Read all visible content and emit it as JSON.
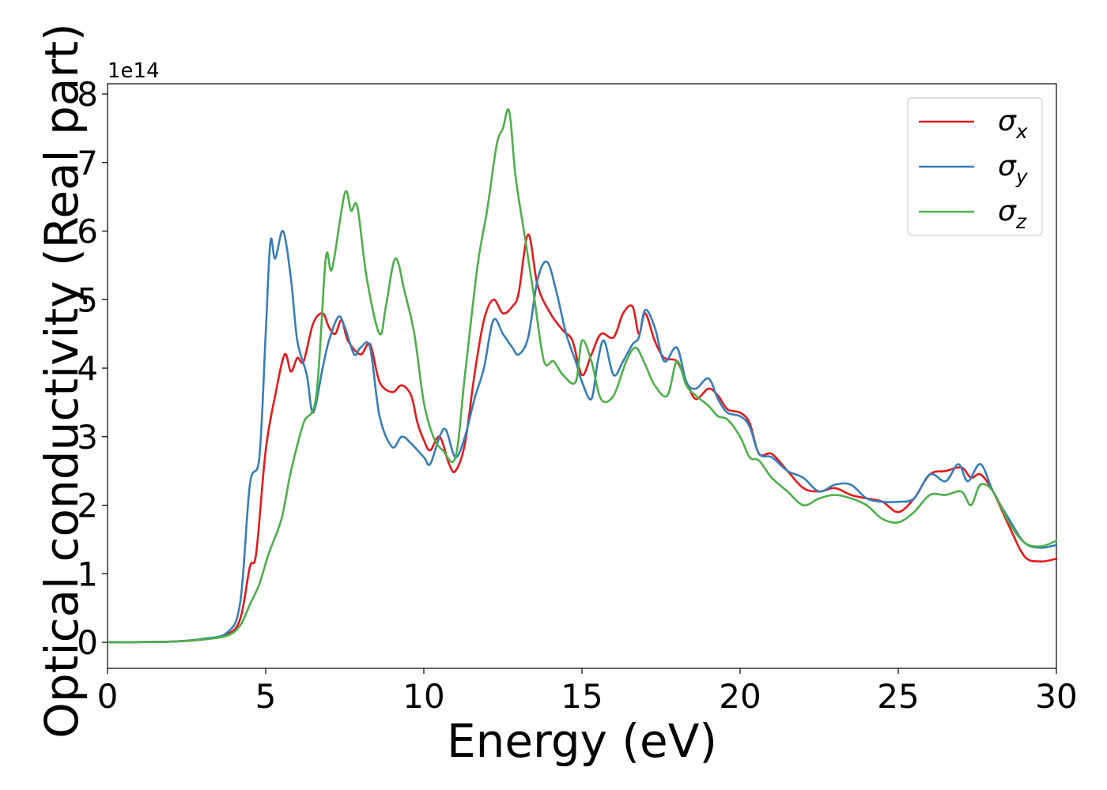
{
  "chart_data": {
    "type": "line",
    "xlabel": "Energy (eV)",
    "ylabel": "Optical conductivity (Real part)",
    "y_offset_label": "1e14",
    "xlim": [
      0,
      30
    ],
    "ylim": [
      -0.38,
      8.15
    ],
    "xticks": [
      0,
      5,
      10,
      15,
      20,
      25,
      30
    ],
    "yticks": [
      0,
      1,
      2,
      3,
      4,
      5,
      6,
      7,
      8
    ],
    "grid": false,
    "legend_position": "top-right",
    "series": [
      {
        "name": "σ",
        "subscript": "x",
        "color": "#e41a1c",
        "points": [
          [
            0,
            0
          ],
          [
            2,
            0.01
          ],
          [
            3,
            0.04
          ],
          [
            3.8,
            0.12
          ],
          [
            4.2,
            0.35
          ],
          [
            4.5,
            1.1
          ],
          [
            4.7,
            1.3
          ],
          [
            5.0,
            2.8
          ],
          [
            5.3,
            3.6
          ],
          [
            5.6,
            4.2
          ],
          [
            5.8,
            3.95
          ],
          [
            6.0,
            4.15
          ],
          [
            6.2,
            4.1
          ],
          [
            6.5,
            4.65
          ],
          [
            6.8,
            4.8
          ],
          [
            7.0,
            4.6
          ],
          [
            7.2,
            4.5
          ],
          [
            7.4,
            4.7
          ],
          [
            7.6,
            4.4
          ],
          [
            8.0,
            4.2
          ],
          [
            8.3,
            4.35
          ],
          [
            8.6,
            3.8
          ],
          [
            9.0,
            3.65
          ],
          [
            9.3,
            3.75
          ],
          [
            9.6,
            3.6
          ],
          [
            9.8,
            3.2
          ],
          [
            10.0,
            2.95
          ],
          [
            10.2,
            2.8
          ],
          [
            10.5,
            3.0
          ],
          [
            10.8,
            2.6
          ],
          [
            11.0,
            2.5
          ],
          [
            11.3,
            2.9
          ],
          [
            11.6,
            3.9
          ],
          [
            11.9,
            4.7
          ],
          [
            12.2,
            5.0
          ],
          [
            12.5,
            4.8
          ],
          [
            12.8,
            4.9
          ],
          [
            13.0,
            5.1
          ],
          [
            13.3,
            5.95
          ],
          [
            13.6,
            5.2
          ],
          [
            14.0,
            4.8
          ],
          [
            14.4,
            4.55
          ],
          [
            14.7,
            4.4
          ],
          [
            15.0,
            3.9
          ],
          [
            15.3,
            4.2
          ],
          [
            15.6,
            4.5
          ],
          [
            16.0,
            4.45
          ],
          [
            16.3,
            4.8
          ],
          [
            16.6,
            4.9
          ],
          [
            16.8,
            4.5
          ],
          [
            17.0,
            4.8
          ],
          [
            17.3,
            4.4
          ],
          [
            17.6,
            4.15
          ],
          [
            18.0,
            4.1
          ],
          [
            18.3,
            3.8
          ],
          [
            18.6,
            3.55
          ],
          [
            19.0,
            3.7
          ],
          [
            19.3,
            3.6
          ],
          [
            19.6,
            3.4
          ],
          [
            20.0,
            3.35
          ],
          [
            20.3,
            3.2
          ],
          [
            20.6,
            2.75
          ],
          [
            21.0,
            2.75
          ],
          [
            21.5,
            2.5
          ],
          [
            22.0,
            2.25
          ],
          [
            22.5,
            2.2
          ],
          [
            23.0,
            2.25
          ],
          [
            23.5,
            2.15
          ],
          [
            24.0,
            2.1
          ],
          [
            24.5,
            2.05
          ],
          [
            25.0,
            1.9
          ],
          [
            25.5,
            2.1
          ],
          [
            26.0,
            2.45
          ],
          [
            26.5,
            2.5
          ],
          [
            27.0,
            2.55
          ],
          [
            27.3,
            2.4
          ],
          [
            27.6,
            2.45
          ],
          [
            28.0,
            2.2
          ],
          [
            28.5,
            1.7
          ],
          [
            29.0,
            1.25
          ],
          [
            29.5,
            1.18
          ],
          [
            30.0,
            1.22
          ]
        ]
      },
      {
        "name": "σ",
        "subscript": "y",
        "color": "#377eb8",
        "points": [
          [
            0,
            0
          ],
          [
            2,
            0.01
          ],
          [
            3,
            0.05
          ],
          [
            3.8,
            0.15
          ],
          [
            4.2,
            0.6
          ],
          [
            4.5,
            2.3
          ],
          [
            4.8,
            2.7
          ],
          [
            5.0,
            4.5
          ],
          [
            5.15,
            5.85
          ],
          [
            5.3,
            5.6
          ],
          [
            5.55,
            6.0
          ],
          [
            5.8,
            5.3
          ],
          [
            6.0,
            4.4
          ],
          [
            6.3,
            3.9
          ],
          [
            6.5,
            3.35
          ],
          [
            6.8,
            4.0
          ],
          [
            7.0,
            4.4
          ],
          [
            7.3,
            4.75
          ],
          [
            7.5,
            4.6
          ],
          [
            7.8,
            4.2
          ],
          [
            8.0,
            4.3
          ],
          [
            8.3,
            4.3
          ],
          [
            8.6,
            3.3
          ],
          [
            9.0,
            2.85
          ],
          [
            9.3,
            3.0
          ],
          [
            9.6,
            2.9
          ],
          [
            10.0,
            2.7
          ],
          [
            10.2,
            2.6
          ],
          [
            10.5,
            3.0
          ],
          [
            10.7,
            3.1
          ],
          [
            11.0,
            2.7
          ],
          [
            11.3,
            3.0
          ],
          [
            11.6,
            3.55
          ],
          [
            11.9,
            4.0
          ],
          [
            12.2,
            4.7
          ],
          [
            12.5,
            4.5
          ],
          [
            12.8,
            4.3
          ],
          [
            13.0,
            4.2
          ],
          [
            13.3,
            4.45
          ],
          [
            13.6,
            5.3
          ],
          [
            13.9,
            5.55
          ],
          [
            14.2,
            5.1
          ],
          [
            14.5,
            4.5
          ],
          [
            14.8,
            4.1
          ],
          [
            15.0,
            3.8
          ],
          [
            15.3,
            3.55
          ],
          [
            15.5,
            4.1
          ],
          [
            15.7,
            4.4
          ],
          [
            16.0,
            3.9
          ],
          [
            16.3,
            4.1
          ],
          [
            16.6,
            4.35
          ],
          [
            16.8,
            4.45
          ],
          [
            17.0,
            4.85
          ],
          [
            17.3,
            4.6
          ],
          [
            17.6,
            4.1
          ],
          [
            18.0,
            4.3
          ],
          [
            18.3,
            3.8
          ],
          [
            18.6,
            3.7
          ],
          [
            19.0,
            3.85
          ],
          [
            19.3,
            3.55
          ],
          [
            19.6,
            3.35
          ],
          [
            20.0,
            3.3
          ],
          [
            20.3,
            3.15
          ],
          [
            20.6,
            2.75
          ],
          [
            21.0,
            2.7
          ],
          [
            21.5,
            2.5
          ],
          [
            22.0,
            2.4
          ],
          [
            22.5,
            2.2
          ],
          [
            23.0,
            2.3
          ],
          [
            23.5,
            2.3
          ],
          [
            24.0,
            2.1
          ],
          [
            24.5,
            2.05
          ],
          [
            25.0,
            2.05
          ],
          [
            25.5,
            2.1
          ],
          [
            26.0,
            2.45
          ],
          [
            26.5,
            2.35
          ],
          [
            26.9,
            2.6
          ],
          [
            27.2,
            2.35
          ],
          [
            27.6,
            2.6
          ],
          [
            28.0,
            2.2
          ],
          [
            28.5,
            1.8
          ],
          [
            29.0,
            1.45
          ],
          [
            29.5,
            1.38
          ],
          [
            30.0,
            1.42
          ]
        ]
      },
      {
        "name": "σ",
        "subscript": "z",
        "color": "#4daf4a",
        "points": [
          [
            0,
            0
          ],
          [
            2,
            0.01
          ],
          [
            3,
            0.04
          ],
          [
            3.8,
            0.1
          ],
          [
            4.2,
            0.25
          ],
          [
            4.5,
            0.55
          ],
          [
            4.8,
            0.85
          ],
          [
            5.1,
            1.3
          ],
          [
            5.5,
            1.8
          ],
          [
            5.8,
            2.5
          ],
          [
            6.2,
            3.2
          ],
          [
            6.6,
            3.6
          ],
          [
            6.9,
            5.6
          ],
          [
            7.1,
            5.45
          ],
          [
            7.5,
            6.55
          ],
          [
            7.7,
            6.3
          ],
          [
            7.9,
            6.35
          ],
          [
            8.2,
            5.3
          ],
          [
            8.6,
            4.5
          ],
          [
            8.8,
            4.9
          ],
          [
            9.1,
            5.6
          ],
          [
            9.4,
            5.1
          ],
          [
            9.7,
            4.5
          ],
          [
            10.0,
            3.5
          ],
          [
            10.3,
            3.0
          ],
          [
            10.6,
            2.8
          ],
          [
            11.0,
            2.7
          ],
          [
            11.3,
            3.9
          ],
          [
            11.7,
            5.5
          ],
          [
            12.0,
            6.3
          ],
          [
            12.3,
            7.25
          ],
          [
            12.5,
            7.5
          ],
          [
            12.7,
            7.75
          ],
          [
            12.9,
            6.8
          ],
          [
            13.2,
            5.9
          ],
          [
            13.5,
            5.0
          ],
          [
            13.8,
            4.1
          ],
          [
            14.1,
            4.1
          ],
          [
            14.4,
            3.9
          ],
          [
            14.8,
            3.8
          ],
          [
            15.0,
            4.4
          ],
          [
            15.3,
            4.1
          ],
          [
            15.6,
            3.55
          ],
          [
            16.0,
            3.6
          ],
          [
            16.4,
            4.1
          ],
          [
            16.7,
            4.3
          ],
          [
            17.0,
            4.05
          ],
          [
            17.3,
            3.75
          ],
          [
            17.7,
            3.6
          ],
          [
            18.0,
            4.1
          ],
          [
            18.3,
            3.75
          ],
          [
            18.6,
            3.6
          ],
          [
            19.0,
            3.45
          ],
          [
            19.3,
            3.3
          ],
          [
            19.6,
            3.25
          ],
          [
            20.0,
            3.0
          ],
          [
            20.3,
            2.7
          ],
          [
            20.6,
            2.65
          ],
          [
            21.0,
            2.4
          ],
          [
            21.5,
            2.2
          ],
          [
            22.0,
            2.0
          ],
          [
            22.5,
            2.1
          ],
          [
            23.0,
            2.15
          ],
          [
            23.5,
            2.1
          ],
          [
            24.0,
            2.0
          ],
          [
            24.5,
            1.8
          ],
          [
            25.0,
            1.75
          ],
          [
            25.5,
            1.9
          ],
          [
            26.0,
            2.15
          ],
          [
            26.5,
            2.15
          ],
          [
            27.0,
            2.2
          ],
          [
            27.3,
            2.0
          ],
          [
            27.6,
            2.3
          ],
          [
            28.0,
            2.2
          ],
          [
            28.5,
            1.75
          ],
          [
            29.0,
            1.45
          ],
          [
            29.5,
            1.4
          ],
          [
            30.0,
            1.48
          ]
        ]
      }
    ]
  }
}
